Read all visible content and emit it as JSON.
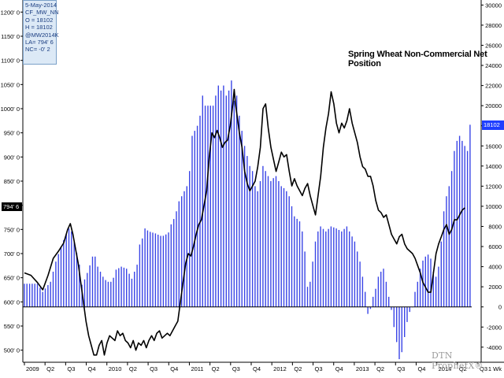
{
  "info_box": {
    "date": "5-May-2014",
    "symbol1": "CF_MW_NN",
    "open": "O = 18102",
    "high": "H = 18102",
    "symbol2": "@MW2014K",
    "last": "LA= 794' 6",
    "net_change": "NC= -0' 2"
  },
  "title": "Spring Wheat Non-Commercial Net Position",
  "left_value_tag": "794' 6",
  "right_value_tag": "18102",
  "watermark": "DTN ProphetX®",
  "chart_data": {
    "type": "bar",
    "title": "Spring Wheat Non-Commercial Net Position",
    "bar_color": "#3a45e6",
    "line_color": "#000000",
    "x_tick_labels": [
      "2009",
      "Q2",
      "Q3",
      "Q4",
      "2010",
      "Q2",
      "Q3",
      "Q4",
      "2011",
      "Q2",
      "Q3",
      "Q4",
      "2012",
      "Q2",
      "Q3",
      "Q4",
      "2013",
      "Q2",
      "Q3",
      "Q4",
      "2014",
      "Q2",
      "Q3"
    ],
    "x_corner_label": "1 Wk",
    "left_axis": {
      "ylim": [
        475,
        1225
      ],
      "ticks": [
        500,
        550,
        600,
        650,
        700,
        750,
        800,
        850,
        900,
        950,
        1000,
        1050,
        1100,
        1150,
        1200
      ],
      "tick_labels": [
        "500' 0",
        "550' 0",
        "600' 0",
        "650' 0",
        "700' 0",
        "750' 0",
        "800' 0",
        "850' 0",
        "900' 0",
        "950' 0",
        "1000' 0",
        "1050' 0",
        "1100' 0",
        "1150' 0",
        "1200' 0"
      ]
    },
    "right_axis": {
      "ylim": [
        -5500,
        30500
      ],
      "ticks": [
        -4000,
        -2000,
        0,
        2000,
        4000,
        6000,
        8000,
        10000,
        12000,
        14000,
        16000,
        18000,
        20000,
        22000,
        24000,
        26000,
        28000,
        30000
      ],
      "tick_labels": [
        "-4000",
        "-2000",
        "0",
        "2000",
        "4000",
        "6000",
        "8000",
        "10000",
        "12000",
        "14000",
        "16000",
        "18000",
        "20000",
        "22000",
        "24000",
        "26000",
        "28000",
        "30000"
      ]
    },
    "bar_series": {
      "name": "",
      "axis": "right",
      "points": [
        [
          0,
          2300
        ],
        [
          10,
          2300
        ],
        [
          14,
          1500
        ],
        [
          20,
          2500
        ],
        [
          24,
          4500
        ],
        [
          28,
          6000
        ],
        [
          33,
          7600
        ],
        [
          35,
          8000
        ],
        [
          38,
          6500
        ],
        [
          42,
          4200
        ],
        [
          44,
          2200
        ],
        [
          47,
          3000
        ],
        [
          51,
          4500
        ],
        [
          53,
          5500
        ],
        [
          56,
          4000
        ],
        [
          60,
          3000
        ],
        [
          63,
          2500
        ],
        [
          67,
          2500
        ],
        [
          70,
          3700
        ],
        [
          74,
          4000
        ],
        [
          78,
          3800
        ],
        [
          82,
          2800
        ],
        [
          86,
          4200
        ],
        [
          88,
          6200
        ],
        [
          90,
          6800
        ],
        [
          92,
          7800
        ],
        [
          95,
          7500
        ],
        [
          100,
          7300
        ],
        [
          105,
          7000
        ],
        [
          108,
          7200
        ],
        [
          110,
          7400
        ],
        [
          112,
          8200
        ],
        [
          115,
          9000
        ],
        [
          118,
          10500
        ],
        [
          122,
          11500
        ],
        [
          124,
          12000
        ],
        [
          126,
          13500
        ],
        [
          128,
          17000
        ],
        [
          130,
          17500
        ],
        [
          132,
          18000
        ],
        [
          134,
          19000
        ],
        [
          136,
          21000
        ],
        [
          138,
          20000
        ],
        [
          140,
          20000
        ],
        [
          144,
          20000
        ],
        [
          146,
          21000
        ],
        [
          148,
          22000
        ],
        [
          150,
          21500
        ],
        [
          152,
          22000
        ],
        [
          154,
          21000
        ],
        [
          156,
          21500
        ],
        [
          158,
          22500
        ],
        [
          160,
          20500
        ],
        [
          162,
          21000
        ],
        [
          164,
          19000
        ],
        [
          166,
          17500
        ],
        [
          168,
          16000
        ],
        [
          170,
          15000
        ],
        [
          172,
          14000
        ],
        [
          174,
          13500
        ],
        [
          176,
          12000
        ],
        [
          178,
          11500
        ],
        [
          180,
          12500
        ],
        [
          182,
          14000
        ],
        [
          184,
          13500
        ],
        [
          186,
          13000
        ],
        [
          188,
          12500
        ],
        [
          190,
          12800
        ],
        [
          192,
          13000
        ],
        [
          194,
          12500
        ],
        [
          196,
          12000
        ],
        [
          198,
          11800
        ],
        [
          200,
          11500
        ],
        [
          202,
          11000
        ],
        [
          204,
          10000
        ],
        [
          206,
          9000
        ],
        [
          210,
          8500
        ],
        [
          212,
          7500
        ],
        [
          214,
          5500
        ],
        [
          215,
          4000
        ],
        [
          216,
          2000
        ],
        [
          218,
          2500
        ],
        [
          220,
          4500
        ],
        [
          222,
          6500
        ],
        [
          224,
          7500
        ],
        [
          226,
          8000
        ],
        [
          230,
          7500
        ],
        [
          234,
          8000
        ],
        [
          238,
          7800
        ],
        [
          242,
          7500
        ],
        [
          246,
          8000
        ],
        [
          250,
          7000
        ],
        [
          252,
          6500
        ],
        [
          254,
          5500
        ],
        [
          256,
          4500
        ],
        [
          258,
          3000
        ],
        [
          260,
          1500
        ],
        [
          261,
          0
        ],
        [
          262,
          -700
        ],
        [
          264,
          -200
        ],
        [
          266,
          1000
        ],
        [
          268,
          1800
        ],
        [
          270,
          3000
        ],
        [
          272,
          3500
        ],
        [
          274,
          3800
        ],
        [
          276,
          2500
        ],
        [
          278,
          1000
        ],
        [
          280,
          -300
        ],
        [
          282,
          -2000
        ],
        [
          284,
          -3500
        ],
        [
          285,
          -5000
        ],
        [
          286,
          -5200
        ],
        [
          288,
          -4500
        ],
        [
          290,
          -3000
        ],
        [
          292,
          -1500
        ],
        [
          294,
          -500
        ],
        [
          296,
          0
        ],
        [
          298,
          1500
        ],
        [
          300,
          2500
        ],
        [
          302,
          3800
        ],
        [
          304,
          4600
        ],
        [
          306,
          5000
        ],
        [
          308,
          5200
        ],
        [
          310,
          4800
        ],
        [
          312,
          3500
        ],
        [
          314,
          3000
        ],
        [
          316,
          4000
        ],
        [
          318,
          6500
        ],
        [
          320,
          9500
        ],
        [
          322,
          11000
        ],
        [
          324,
          12000
        ],
        [
          326,
          13500
        ],
        [
          328,
          15500
        ],
        [
          330,
          16500
        ],
        [
          332,
          17000
        ],
        [
          334,
          16500
        ],
        [
          336,
          16000
        ],
        [
          338,
          15500
        ],
        [
          340,
          18102
        ]
      ]
    },
    "line_series": {
      "name": "",
      "axis": "left",
      "points": [
        [
          0,
          660
        ],
        [
          5,
          655
        ],
        [
          10,
          640
        ],
        [
          14,
          625
        ],
        [
          18,
          655
        ],
        [
          22,
          690
        ],
        [
          26,
          705
        ],
        [
          30,
          722
        ],
        [
          33,
          750
        ],
        [
          35,
          762
        ],
        [
          37,
          740
        ],
        [
          39,
          710
        ],
        [
          41,
          680
        ],
        [
          43,
          640
        ],
        [
          45,
          600
        ],
        [
          47,
          560
        ],
        [
          49,
          530
        ],
        [
          51,
          510
        ],
        [
          53,
          490
        ],
        [
          55,
          490
        ],
        [
          57,
          510
        ],
        [
          59,
          520
        ],
        [
          61,
          490
        ],
        [
          63,
          515
        ],
        [
          65,
          530
        ],
        [
          67,
          525
        ],
        [
          69,
          520
        ],
        [
          71,
          540
        ],
        [
          73,
          530
        ],
        [
          75,
          535
        ],
        [
          77,
          520
        ],
        [
          79,
          515
        ],
        [
          81,
          505
        ],
        [
          83,
          520
        ],
        [
          85,
          500
        ],
        [
          87,
          515
        ],
        [
          89,
          510
        ],
        [
          91,
          520
        ],
        [
          93,
          505
        ],
        [
          95,
          520
        ],
        [
          97,
          530
        ],
        [
          99,
          520
        ],
        [
          101,
          535
        ],
        [
          103,
          540
        ],
        [
          105,
          525
        ],
        [
          107,
          530
        ],
        [
          109,
          535
        ],
        [
          111,
          530
        ],
        [
          113,
          540
        ],
        [
          115,
          550
        ],
        [
          117,
          560
        ],
        [
          119,
          600
        ],
        [
          121,
          640
        ],
        [
          123,
          680
        ],
        [
          125,
          700
        ],
        [
          127,
          695
        ],
        [
          129,
          715
        ],
        [
          131,
          740
        ],
        [
          133,
          760
        ],
        [
          135,
          770
        ],
        [
          137,
          800
        ],
        [
          139,
          830
        ],
        [
          141,
          900
        ],
        [
          143,
          950
        ],
        [
          145,
          940
        ],
        [
          147,
          955
        ],
        [
          149,
          940
        ],
        [
          151,
          920
        ],
        [
          153,
          930
        ],
        [
          155,
          935
        ],
        [
          157,
          965
        ],
        [
          159,
          1010
        ],
        [
          160,
          1040
        ],
        [
          161,
          1010
        ],
        [
          162,
          990
        ],
        [
          164,
          950
        ],
        [
          166,
          920
        ],
        [
          168,
          870
        ],
        [
          170,
          845
        ],
        [
          172,
          830
        ],
        [
          174,
          840
        ],
        [
          176,
          850
        ],
        [
          178,
          880
        ],
        [
          180,
          920
        ],
        [
          182,
          1000
        ],
        [
          184,
          1010
        ],
        [
          186,
          960
        ],
        [
          188,
          920
        ],
        [
          190,
          895
        ],
        [
          192,
          870
        ],
        [
          194,
          890
        ],
        [
          196,
          910
        ],
        [
          198,
          900
        ],
        [
          200,
          905
        ],
        [
          202,
          870
        ],
        [
          204,
          840
        ],
        [
          206,
          855
        ],
        [
          208,
          840
        ],
        [
          210,
          830
        ],
        [
          212,
          820
        ],
        [
          214,
          835
        ],
        [
          216,
          845
        ],
        [
          218,
          820
        ],
        [
          220,
          800
        ],
        [
          222,
          780
        ],
        [
          224,
          820
        ],
        [
          226,
          860
        ],
        [
          228,
          920
        ],
        [
          230,
          960
        ],
        [
          232,
          990
        ],
        [
          234,
          1035
        ],
        [
          236,
          1010
        ],
        [
          238,
          970
        ],
        [
          240,
          950
        ],
        [
          242,
          970
        ],
        [
          244,
          960
        ],
        [
          246,
          975
        ],
        [
          248,
          1000
        ],
        [
          250,
          970
        ],
        [
          252,
          950
        ],
        [
          254,
          930
        ],
        [
          256,
          900
        ],
        [
          258,
          880
        ],
        [
          260,
          875
        ],
        [
          262,
          860
        ],
        [
          264,
          860
        ],
        [
          266,
          840
        ],
        [
          268,
          810
        ],
        [
          270,
          790
        ],
        [
          272,
          785
        ],
        [
          274,
          775
        ],
        [
          276,
          780
        ],
        [
          278,
          760
        ],
        [
          280,
          740
        ],
        [
          282,
          730
        ],
        [
          284,
          720
        ],
        [
          286,
          735
        ],
        [
          288,
          740
        ],
        [
          290,
          720
        ],
        [
          292,
          710
        ],
        [
          294,
          705
        ],
        [
          296,
          700
        ],
        [
          298,
          690
        ],
        [
          300,
          675
        ],
        [
          302,
          660
        ],
        [
          304,
          640
        ],
        [
          306,
          630
        ],
        [
          308,
          620
        ],
        [
          310,
          620
        ],
        [
          312,
          660
        ],
        [
          314,
          700
        ],
        [
          316,
          720
        ],
        [
          318,
          735
        ],
        [
          320,
          750
        ],
        [
          322,
          760
        ],
        [
          324,
          740
        ],
        [
          326,
          750
        ],
        [
          328,
          770
        ],
        [
          330,
          770
        ],
        [
          332,
          780
        ],
        [
          334,
          790
        ],
        [
          336,
          794.75
        ]
      ]
    }
  }
}
